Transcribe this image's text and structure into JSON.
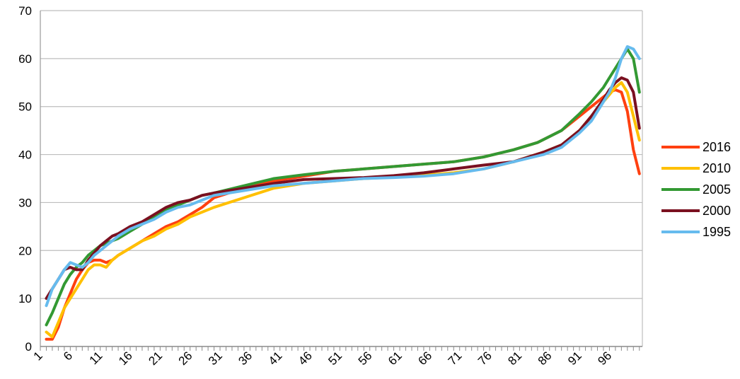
{
  "chart_data": {
    "type": "line",
    "title": "",
    "xlabel": "",
    "ylabel": "",
    "xlim": [
      1,
      100
    ],
    "ylim": [
      0,
      70
    ],
    "y_ticks": [
      0,
      10,
      20,
      30,
      40,
      50,
      60,
      70
    ],
    "x_tick_labels": [
      "1",
      "6",
      "11",
      "16",
      "21",
      "26",
      "31",
      "36",
      "41",
      "46",
      "51",
      "56",
      "61",
      "66",
      "71",
      "76",
      "81",
      "86",
      "91",
      "96"
    ],
    "grid": "horizontal",
    "legend_position": "right",
    "series": [
      {
        "name": "2016",
        "color": "#ff4010",
        "points": [
          [
            2,
            1.5
          ],
          [
            3,
            1.5
          ],
          [
            4,
            4
          ],
          [
            5,
            8
          ],
          [
            6,
            11
          ],
          [
            7,
            14
          ],
          [
            8,
            16
          ],
          [
            9,
            17.5
          ],
          [
            10,
            18
          ],
          [
            11,
            18
          ],
          [
            12,
            17.5
          ],
          [
            13,
            18
          ],
          [
            14,
            19
          ],
          [
            16,
            20.5
          ],
          [
            18,
            22
          ],
          [
            20,
            23.5
          ],
          [
            22,
            25
          ],
          [
            24,
            26
          ],
          [
            26,
            27.5
          ],
          [
            28,
            29
          ],
          [
            30,
            31
          ],
          [
            35,
            33
          ],
          [
            40,
            34.5
          ],
          [
            45,
            35.5
          ],
          [
            50,
            36.5
          ],
          [
            55,
            37
          ],
          [
            60,
            37.5
          ],
          [
            65,
            38
          ],
          [
            70,
            38.5
          ],
          [
            75,
            39.5
          ],
          [
            80,
            41
          ],
          [
            84,
            42.5
          ],
          [
            88,
            45
          ],
          [
            91,
            48
          ],
          [
            93,
            50
          ],
          [
            95,
            52
          ],
          [
            96,
            53
          ],
          [
            97,
            53.5
          ],
          [
            98,
            53
          ],
          [
            99,
            49
          ],
          [
            100,
            41
          ],
          [
            101,
            36
          ]
        ]
      },
      {
        "name": "2010",
        "color": "#ffc000",
        "points": [
          [
            2,
            3
          ],
          [
            3,
            2
          ],
          [
            4,
            5
          ],
          [
            5,
            8
          ],
          [
            6,
            10
          ],
          [
            7,
            12
          ],
          [
            8,
            14
          ],
          [
            9,
            16
          ],
          [
            10,
            17
          ],
          [
            11,
            17
          ],
          [
            12,
            16.5
          ],
          [
            13,
            18
          ],
          [
            14,
            19
          ],
          [
            16,
            20.5
          ],
          [
            18,
            22
          ],
          [
            20,
            23
          ],
          [
            22,
            24.5
          ],
          [
            24,
            25.5
          ],
          [
            26,
            27
          ],
          [
            28,
            28
          ],
          [
            30,
            29
          ],
          [
            35,
            31
          ],
          [
            40,
            33
          ],
          [
            45,
            34
          ],
          [
            50,
            34.5
          ],
          [
            55,
            35
          ],
          [
            60,
            35.3
          ],
          [
            65,
            35.7
          ],
          [
            70,
            36.2
          ],
          [
            75,
            37
          ],
          [
            80,
            38.5
          ],
          [
            85,
            40.5
          ],
          [
            88,
            42
          ],
          [
            91,
            45
          ],
          [
            93,
            48
          ],
          [
            95,
            51
          ],
          [
            96,
            52.5
          ],
          [
            97,
            54
          ],
          [
            98,
            55
          ],
          [
            99,
            53
          ],
          [
            100,
            48
          ],
          [
            101,
            43
          ]
        ]
      },
      {
        "name": "2005",
        "color": "#339933",
        "points": [
          [
            2,
            4.5
          ],
          [
            3,
            7
          ],
          [
            4,
            10
          ],
          [
            5,
            13
          ],
          [
            6,
            15
          ],
          [
            7,
            16.5
          ],
          [
            8,
            17.5
          ],
          [
            9,
            19
          ],
          [
            10,
            20
          ],
          [
            11,
            21
          ],
          [
            12,
            21.5
          ],
          [
            13,
            22
          ],
          [
            14,
            22.5
          ],
          [
            16,
            24
          ],
          [
            18,
            25.5
          ],
          [
            20,
            27
          ],
          [
            22,
            28.5
          ],
          [
            24,
            29.5
          ],
          [
            26,
            30.5
          ],
          [
            28,
            31.5
          ],
          [
            30,
            32
          ],
          [
            35,
            33.5
          ],
          [
            40,
            35
          ],
          [
            45,
            35.8
          ],
          [
            50,
            36.5
          ],
          [
            55,
            37
          ],
          [
            60,
            37.5
          ],
          [
            65,
            38
          ],
          [
            70,
            38.5
          ],
          [
            75,
            39.5
          ],
          [
            80,
            41
          ],
          [
            84,
            42.5
          ],
          [
            88,
            45
          ],
          [
            91,
            48.5
          ],
          [
            93,
            51
          ],
          [
            95,
            54
          ],
          [
            96,
            56
          ],
          [
            97,
            58
          ],
          [
            98,
            60
          ],
          [
            99,
            62
          ],
          [
            100,
            60
          ],
          [
            101,
            53
          ]
        ]
      },
      {
        "name": "2000",
        "color": "#7a1020",
        "points": [
          [
            2,
            10
          ],
          [
            3,
            12
          ],
          [
            4,
            14
          ],
          [
            5,
            16
          ],
          [
            6,
            16.5
          ],
          [
            7,
            16
          ],
          [
            8,
            16
          ],
          [
            9,
            18
          ],
          [
            10,
            19.5
          ],
          [
            11,
            21
          ],
          [
            12,
            22
          ],
          [
            13,
            23
          ],
          [
            14,
            23.5
          ],
          [
            16,
            25
          ],
          [
            18,
            26
          ],
          [
            20,
            27.5
          ],
          [
            22,
            29
          ],
          [
            24,
            30
          ],
          [
            26,
            30.5
          ],
          [
            28,
            31.5
          ],
          [
            30,
            32
          ],
          [
            35,
            33
          ],
          [
            40,
            34
          ],
          [
            45,
            34.8
          ],
          [
            50,
            35
          ],
          [
            55,
            35.2
          ],
          [
            60,
            35.6
          ],
          [
            65,
            36.2
          ],
          [
            70,
            37
          ],
          [
            75,
            37.8
          ],
          [
            80,
            38.5
          ],
          [
            85,
            40.5
          ],
          [
            88,
            42
          ],
          [
            91,
            45
          ],
          [
            93,
            48
          ],
          [
            95,
            51.5
          ],
          [
            96,
            53.5
          ],
          [
            97,
            55
          ],
          [
            98,
            56
          ],
          [
            99,
            55.5
          ],
          [
            100,
            53
          ],
          [
            101,
            45.5
          ]
        ]
      },
      {
        "name": "1995",
        "color": "#66bbee",
        "points": [
          [
            2,
            8.5
          ],
          [
            3,
            12
          ],
          [
            4,
            14
          ],
          [
            5,
            16
          ],
          [
            6,
            17.5
          ],
          [
            7,
            17
          ],
          [
            8,
            16.5
          ],
          [
            9,
            17.5
          ],
          [
            10,
            19
          ],
          [
            11,
            20
          ],
          [
            12,
            21
          ],
          [
            13,
            22
          ],
          [
            14,
            23
          ],
          [
            16,
            24.5
          ],
          [
            18,
            25.5
          ],
          [
            20,
            26.5
          ],
          [
            22,
            28
          ],
          [
            24,
            29
          ],
          [
            26,
            29.5
          ],
          [
            28,
            30.5
          ],
          [
            30,
            31.5
          ],
          [
            35,
            32.5
          ],
          [
            40,
            33.5
          ],
          [
            45,
            34
          ],
          [
            50,
            34.5
          ],
          [
            55,
            35
          ],
          [
            60,
            35.2
          ],
          [
            65,
            35.5
          ],
          [
            70,
            36
          ],
          [
            75,
            37
          ],
          [
            80,
            38.5
          ],
          [
            85,
            40
          ],
          [
            88,
            41.5
          ],
          [
            91,
            44.5
          ],
          [
            93,
            47
          ],
          [
            95,
            51
          ],
          [
            96,
            53
          ],
          [
            97,
            56
          ],
          [
            98,
            60
          ],
          [
            99,
            62.5
          ],
          [
            100,
            62
          ],
          [
            101,
            60
          ]
        ]
      }
    ]
  }
}
